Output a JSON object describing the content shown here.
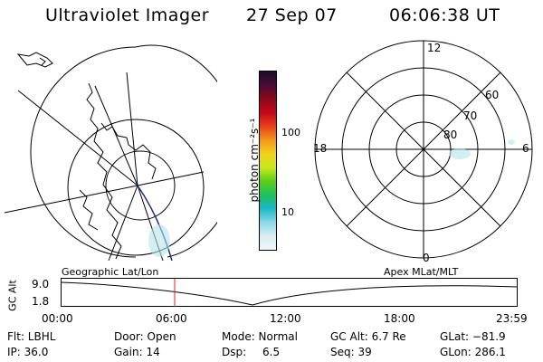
{
  "header": {
    "title": "Ultraviolet Imager",
    "date": "27 Sep 07",
    "time": "06:06:38 UT"
  },
  "colorbar": {
    "unit_label": "photon cm⁻²s⁻¹",
    "ticks": [
      "100",
      "10"
    ],
    "colors": [
      "#1a0e2a",
      "#4a0a3a",
      "#8a0a1a",
      "#c4081a",
      "#e8401a",
      "#f2961a",
      "#f3d21a",
      "#c8e81a",
      "#5ccf1a",
      "#1cc05a",
      "#1ab8c8",
      "#8ad8e8",
      "#d8eef2",
      "#eef6f8"
    ]
  },
  "polar_plot": {
    "mlt_labels": {
      "top": "12",
      "left": "18",
      "right": "6",
      "bottom": "0"
    },
    "lat_labels": [
      "60",
      "70",
      "80"
    ]
  },
  "altitude_strip": {
    "left_label": "Geographic Lat/Lon",
    "right_label": "Apex MLat/MLT",
    "axis_label": "GC Alt",
    "y_ticks": [
      "9.0",
      "1.8"
    ],
    "time_ticks": [
      "00:00",
      "06:00",
      "12:00",
      "18:00",
      "23:59"
    ],
    "marker_time": "06:06:38"
  },
  "footer": {
    "flt": "Flt: LBHL",
    "door": "Door: Open",
    "mode": "Mode: Normal",
    "gc_alt": "GC Alt: 6.7 Re",
    "glat": "GLat: −81.9",
    "ip": "IP: 36.0",
    "gain": "Gain: 14",
    "dsp_label": "Dsp:",
    "dsp_value": "6.5",
    "seq": "Seq: 39",
    "glon": "GLon: 286.1"
  },
  "colors": {
    "marker": "#dd2222",
    "track": "#1a2a8a",
    "aurora": "#b8e4e8"
  }
}
